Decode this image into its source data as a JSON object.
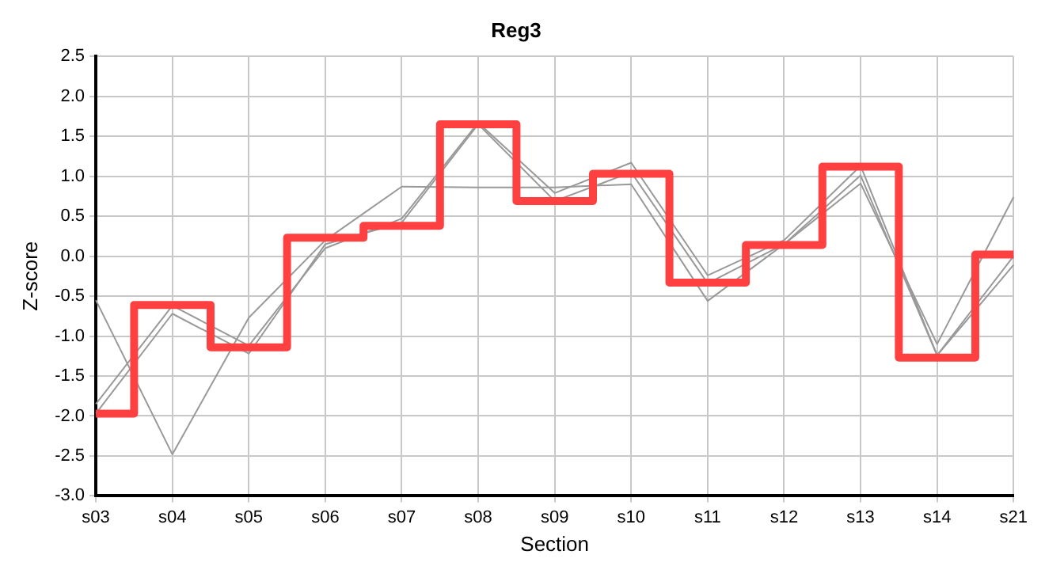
{
  "chart_data": {
    "type": "line",
    "title": "Reg3",
    "xlabel": "Section",
    "ylabel": "Z-score",
    "categories": [
      "s03",
      "s04",
      "s05",
      "s06",
      "s07",
      "s08",
      "s09",
      "s10",
      "s11",
      "s12",
      "s13",
      "s14",
      "s21"
    ],
    "series": [
      {
        "type": "line",
        "color": "#999999",
        "values": [
          -0.55,
          -2.48,
          -0.77,
          0.2,
          0.87,
          0.86,
          0.86,
          0.9,
          -0.56,
          0.15,
          0.91,
          -1.1,
          0.74
        ]
      },
      {
        "type": "line",
        "color": "#999999",
        "values": [
          -1.85,
          -0.62,
          -1.12,
          0.1,
          0.47,
          1.67,
          0.79,
          1.17,
          -0.24,
          0.2,
          1.13,
          -1.24,
          0.0
        ]
      },
      {
        "type": "line",
        "color": "#999999",
        "values": [
          -1.97,
          -0.72,
          -1.22,
          0.15,
          0.42,
          1.65,
          0.69,
          1.05,
          -0.34,
          0.15,
          1.01,
          -1.24,
          -0.11
        ]
      },
      {
        "type": "step",
        "color": "#ff4040",
        "values": [
          -1.97,
          -0.61,
          -1.14,
          0.23,
          0.38,
          1.65,
          0.69,
          1.03,
          -0.33,
          0.14,
          1.12,
          -1.27,
          0.02
        ]
      }
    ],
    "ylim": [
      -3.0,
      2.5
    ],
    "yticks": [
      {
        "value": -3,
        "label": "-3.0"
      },
      {
        "value": -2.5,
        "label": "-2.5"
      },
      {
        "value": -2,
        "label": "-2.0"
      },
      {
        "value": -1.5,
        "label": "-1.5"
      },
      {
        "value": -1,
        "label": "-1.0"
      },
      {
        "value": -0.5,
        "label": "-0.5"
      },
      {
        "value": 0,
        "label": "0.0"
      },
      {
        "value": 0.5,
        "label": "0.5"
      },
      {
        "value": 1,
        "label": "1.0"
      },
      {
        "value": 1.5,
        "label": "1.5"
      },
      {
        "value": 2,
        "label": "2.0"
      },
      {
        "value": 2.5,
        "label": "2.5"
      }
    ],
    "grid": true,
    "legend": false,
    "marker": "none",
    "line_style": "solid"
  }
}
